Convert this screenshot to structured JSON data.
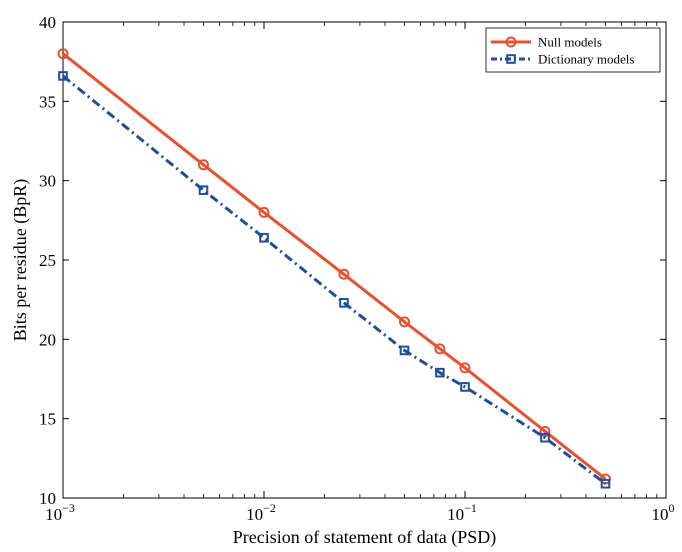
{
  "chart_data": {
    "type": "line",
    "xscale": "log",
    "xlim": [
      0.001,
      1
    ],
    "ylim": [
      10,
      40
    ],
    "xlabel": "Precision of statement of data (PSD)",
    "ylabel": "Bits per residue (BpR)",
    "x_ticks": [
      {
        "value": 0.001,
        "base": "10",
        "exp": "−3"
      },
      {
        "value": 0.01,
        "base": "10",
        "exp": "−2"
      },
      {
        "value": 0.1,
        "base": "10",
        "exp": "−1"
      },
      {
        "value": 1,
        "base": "10",
        "exp": "0"
      }
    ],
    "y_ticks": [
      10,
      15,
      20,
      25,
      30,
      35,
      40
    ],
    "legend_position": "top-right",
    "x": [
      0.001,
      0.005,
      0.01,
      0.025,
      0.05,
      0.075,
      0.1,
      0.25,
      0.5
    ],
    "series": [
      {
        "name": "Null models",
        "color": "#e8502e",
        "marker": "circle",
        "linestyle": "solid",
        "values": [
          38.0,
          31.0,
          28.0,
          24.1,
          21.1,
          19.4,
          18.2,
          14.2,
          11.2
        ]
      },
      {
        "name": "Dictionary models",
        "color": "#1f4e9c",
        "marker": "square",
        "linestyle": "dashdot",
        "values": [
          36.6,
          29.4,
          26.4,
          22.3,
          19.3,
          17.9,
          17.0,
          13.8,
          10.9
        ]
      }
    ]
  }
}
